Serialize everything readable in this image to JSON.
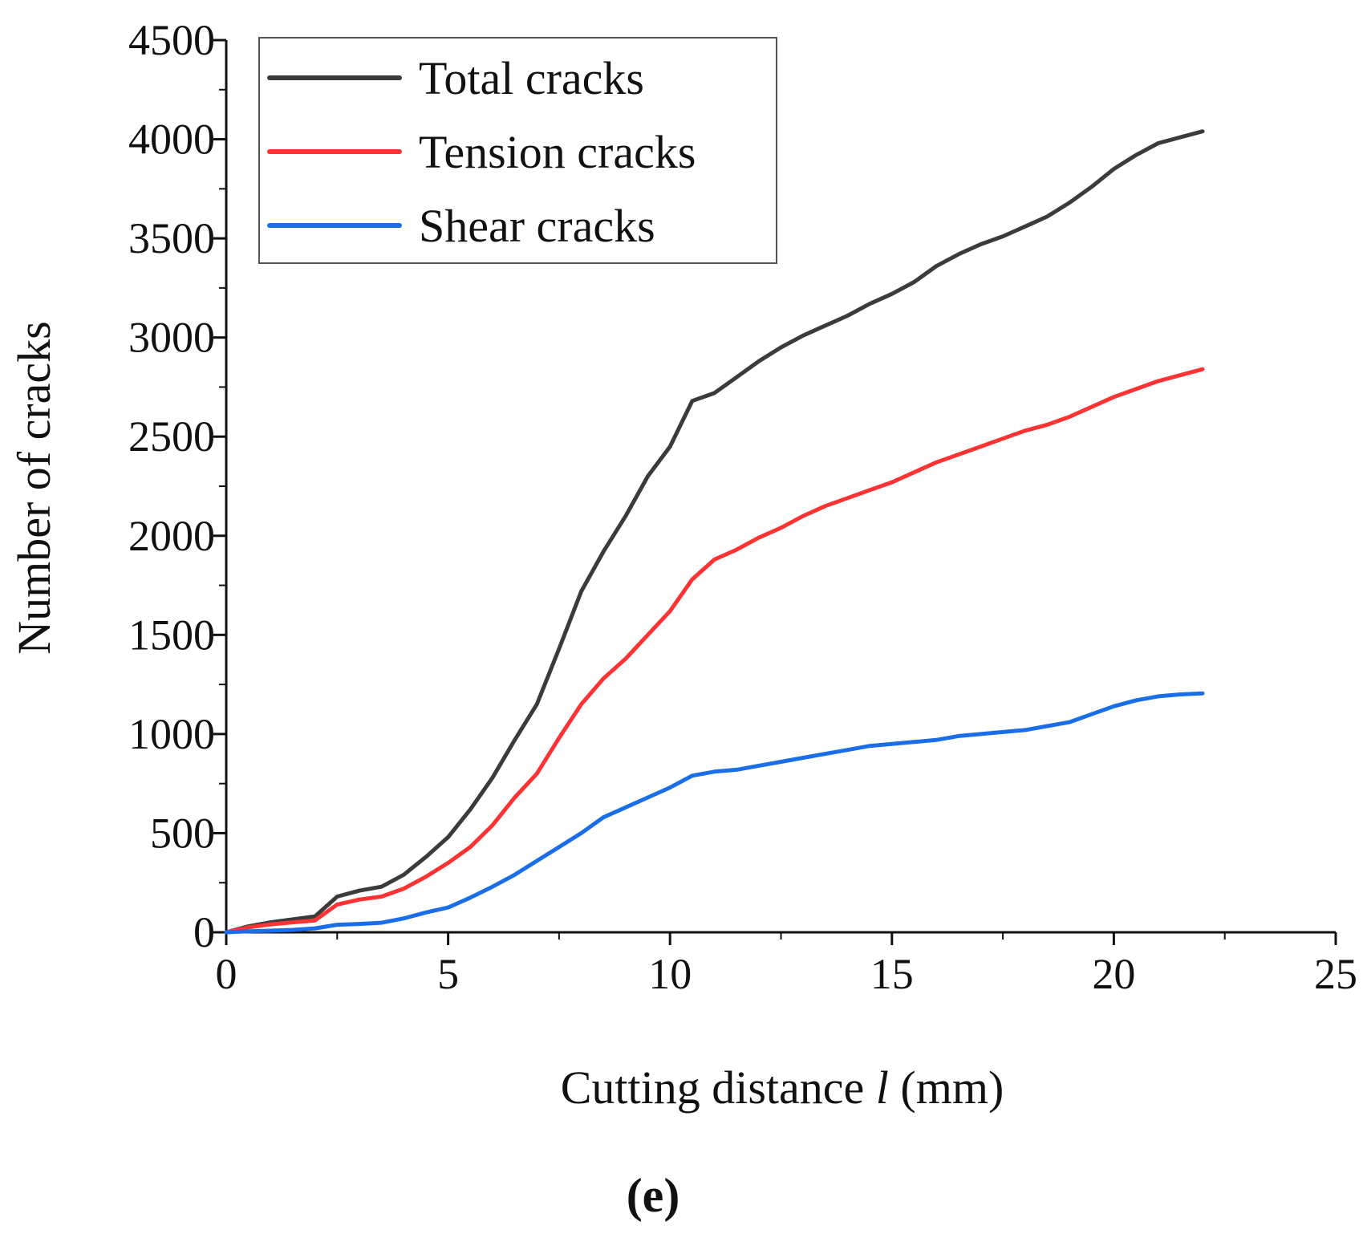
{
  "chart_data": {
    "type": "line",
    "title": "",
    "panel_label": "(e)",
    "xlabel_parts": [
      "Cutting distance ",
      "l",
      " (mm)"
    ],
    "ylabel": "Number of cracks",
    "xlim": [
      0,
      25
    ],
    "ylim": [
      0,
      4500
    ],
    "xticks": [
      0,
      5,
      10,
      15,
      20,
      25
    ],
    "yticks": [
      0,
      500,
      1000,
      1500,
      2000,
      2500,
      3000,
      3500,
      4000,
      4500
    ],
    "x_minor_step": 2.5,
    "y_minor_step": 250,
    "grid": false,
    "legend_position": "top-left",
    "series": [
      {
        "name": "Total cracks",
        "color": "#3b3b3b",
        "x": [
          0,
          0.5,
          1,
          1.5,
          2,
          2.5,
          3,
          3.5,
          4,
          4.5,
          5,
          5.5,
          6,
          6.5,
          7,
          7.5,
          8,
          8.5,
          9,
          9.5,
          10,
          10.5,
          11,
          11.5,
          12,
          12.5,
          13,
          13.5,
          14,
          14.5,
          15,
          15.5,
          16,
          16.5,
          17,
          17.5,
          18,
          18.5,
          19,
          19.5,
          20,
          20.5,
          21,
          21.5,
          22
        ],
        "values": [
          0,
          30,
          50,
          65,
          80,
          180,
          210,
          230,
          290,
          380,
          480,
          620,
          780,
          970,
          1150,
          1430,
          1720,
          1920,
          2100,
          2300,
          2450,
          2680,
          2720,
          2800,
          2880,
          2950,
          3010,
          3060,
          3110,
          3170,
          3220,
          3280,
          3360,
          3420,
          3470,
          3510,
          3560,
          3610,
          3680,
          3760,
          3850,
          3920,
          3980,
          4010,
          4040
        ]
      },
      {
        "name": "Tension cracks",
        "color": "#ff3333",
        "x": [
          0,
          0.5,
          1,
          1.5,
          2,
          2.5,
          3,
          3.5,
          4,
          4.5,
          5,
          5.5,
          6,
          6.5,
          7,
          7.5,
          8,
          8.5,
          9,
          9.5,
          10,
          10.5,
          11,
          11.5,
          12,
          12.5,
          13,
          13.5,
          14,
          14.5,
          15,
          15.5,
          16,
          16.5,
          17,
          17.5,
          18,
          18.5,
          19,
          19.5,
          20,
          20.5,
          21,
          21.5,
          22
        ],
        "values": [
          0,
          25,
          40,
          50,
          60,
          140,
          165,
          180,
          220,
          280,
          350,
          430,
          540,
          680,
          800,
          980,
          1150,
          1280,
          1380,
          1500,
          1620,
          1780,
          1880,
          1930,
          1990,
          2040,
          2100,
          2150,
          2190,
          2230,
          2270,
          2320,
          2370,
          2410,
          2450,
          2490,
          2530,
          2560,
          2600,
          2650,
          2700,
          2740,
          2780,
          2810,
          2840
        ]
      },
      {
        "name": "Shear cracks",
        "color": "#1a6fe8",
        "x": [
          0,
          0.5,
          1,
          1.5,
          2,
          2.5,
          3,
          3.5,
          4,
          4.5,
          5,
          5.5,
          6,
          6.5,
          7,
          7.5,
          8,
          8.5,
          9,
          9.5,
          10,
          10.5,
          11,
          11.5,
          12,
          12.5,
          13,
          13.5,
          14,
          14.5,
          15,
          15.5,
          16,
          16.5,
          17,
          17.5,
          18,
          18.5,
          19,
          19.5,
          20,
          20.5,
          21,
          21.5,
          22
        ],
        "values": [
          0,
          5,
          8,
          12,
          20,
          38,
          42,
          48,
          70,
          100,
          125,
          175,
          230,
          290,
          360,
          430,
          500,
          580,
          630,
          680,
          730,
          790,
          810,
          820,
          840,
          860,
          880,
          900,
          920,
          940,
          950,
          960,
          970,
          990,
          1000,
          1010,
          1020,
          1040,
          1060,
          1100,
          1140,
          1170,
          1190,
          1200,
          1205
        ]
      }
    ]
  }
}
